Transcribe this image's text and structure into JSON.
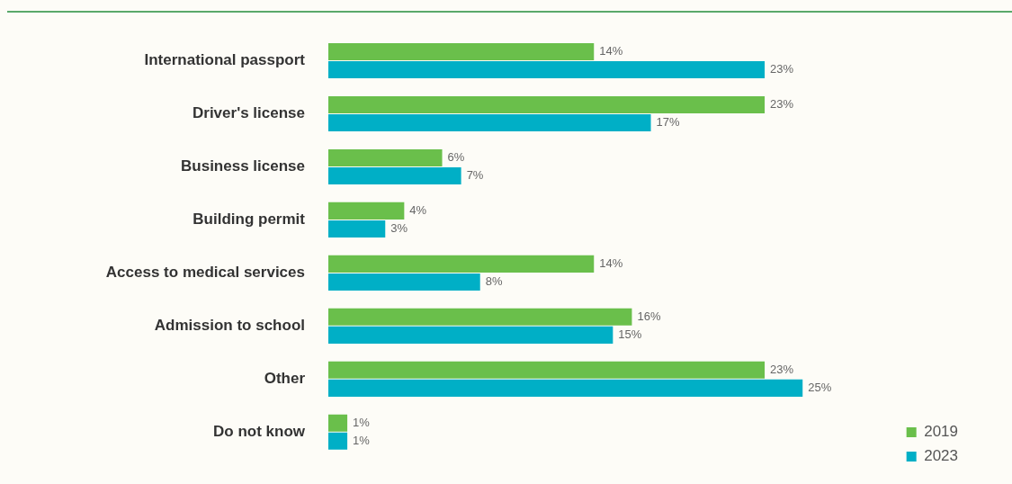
{
  "chart_data": {
    "type": "bar",
    "orientation": "horizontal",
    "legend": "bottom right",
    "categories": [
      "International passport",
      "Driver's license",
      "Business license",
      "Building permit",
      "Access to medical services",
      "Admission to school",
      "Other",
      "Do not know"
    ],
    "series": [
      {
        "name": "2019",
        "color": "#6abf4b",
        "values": [
          14,
          23,
          6,
          4,
          14,
          16,
          23,
          1
        ],
        "value_labels": [
          "14%",
          "23%",
          "6%",
          "4%",
          "14%",
          "16%",
          "23%",
          "1%"
        ]
      },
      {
        "name": "2023",
        "color": "#00afc6",
        "values": [
          23,
          17,
          7,
          3,
          8,
          15,
          25,
          1
        ],
        "value_labels": [
          "23%",
          "17%",
          "7%",
          "3%",
          "8%",
          "15%",
          "25%",
          "1%"
        ]
      }
    ]
  }
}
